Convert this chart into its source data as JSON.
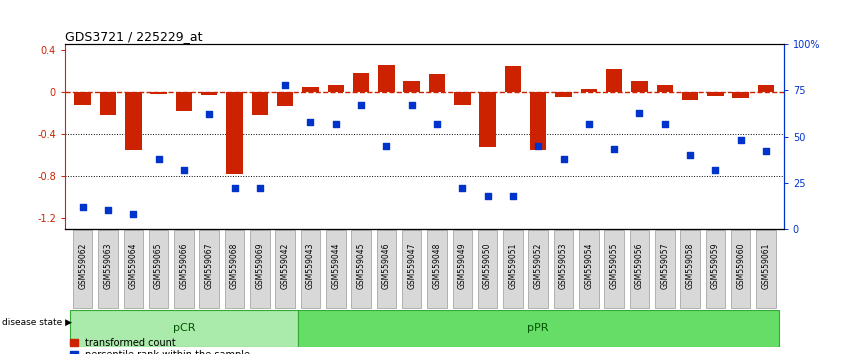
{
  "title": "GDS3721 / 225229_at",
  "samples": [
    "GSM559062",
    "GSM559063",
    "GSM559064",
    "GSM559065",
    "GSM559066",
    "GSM559067",
    "GSM559068",
    "GSM559069",
    "GSM559042",
    "GSM559043",
    "GSM559044",
    "GSM559045",
    "GSM559046",
    "GSM559047",
    "GSM559048",
    "GSM559049",
    "GSM559050",
    "GSM559051",
    "GSM559052",
    "GSM559053",
    "GSM559054",
    "GSM559055",
    "GSM559056",
    "GSM559057",
    "GSM559058",
    "GSM559059",
    "GSM559060",
    "GSM559061"
  ],
  "bar_values": [
    -0.13,
    -0.22,
    -0.55,
    -0.02,
    -0.18,
    -0.03,
    -0.78,
    -0.22,
    -0.14,
    0.04,
    0.06,
    0.18,
    0.25,
    0.1,
    0.17,
    -0.13,
    -0.52,
    0.24,
    -0.55,
    -0.05,
    0.03,
    0.22,
    0.1,
    0.06,
    -0.08,
    -0.04,
    -0.06,
    0.06
  ],
  "dot_values": [
    12,
    10,
    8,
    38,
    32,
    62,
    22,
    22,
    78,
    58,
    57,
    67,
    45,
    67,
    57,
    22,
    18,
    18,
    45,
    38,
    57,
    43,
    63,
    57,
    40,
    32,
    48,
    42
  ],
  "pCR_count": 9,
  "pPR_count": 19,
  "ylim_left": [
    -1.3,
    0.45
  ],
  "ylim_right": [
    0,
    100
  ],
  "yticks_left": [
    0.4,
    0.0,
    -0.4,
    -0.8,
    -1.2
  ],
  "ytick_labels_left": [
    "0.4",
    "0",
    "-0.4",
    "-0.8",
    "-1.2"
  ],
  "yticks_right": [
    100,
    75,
    50,
    25,
    0
  ],
  "ytick_labels_right": [
    "100%",
    "75",
    "50",
    "25",
    "0"
  ],
  "bar_color": "#CC2200",
  "dot_color": "#0033CC",
  "hline_color": "#CC2200",
  "grid_color": "#000000",
  "pCR_color": "#AAEAAA",
  "pPR_color": "#66DD66",
  "label_bar": "transformed count",
  "label_dot": "percentile rank within the sample",
  "disease_state_label": "disease state",
  "pCR_label": "pCR",
  "pPR_label": "pPR",
  "background_color": "#FFFFFF"
}
